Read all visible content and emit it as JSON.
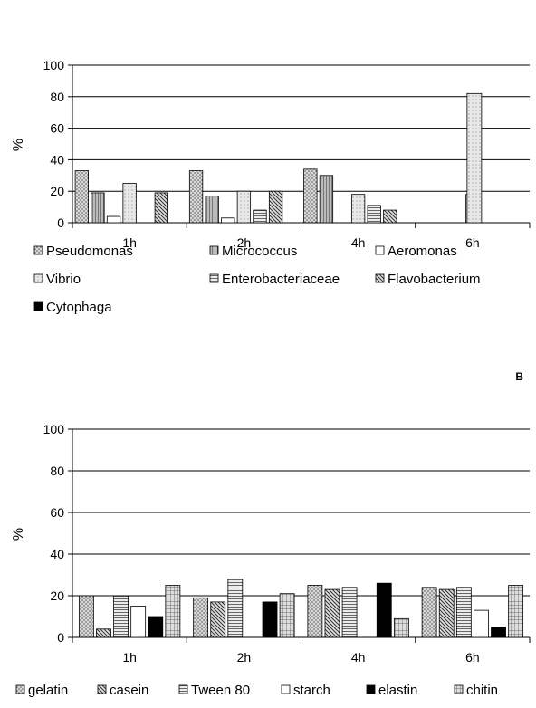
{
  "chart_data": [
    {
      "type": "bar",
      "panel_label": "",
      "ylabel": "%",
      "ylim": [
        0,
        100
      ],
      "yticks": [
        "0",
        "20",
        "40",
        "60",
        "80",
        "100"
      ],
      "grid": true,
      "legend_position": "bottom",
      "categories": [
        "1h",
        "2h",
        "4h",
        "6h"
      ],
      "series": [
        {
          "name": "Pseudomonas",
          "pattern": "dots",
          "values": [
            33,
            33,
            34,
            0
          ]
        },
        {
          "name": "Micrococcus",
          "pattern": "hatch-dense",
          "values": [
            19,
            17,
            30,
            0
          ]
        },
        {
          "name": "Aeromonas",
          "pattern": "white",
          "values": [
            4,
            3,
            0,
            0
          ]
        },
        {
          "name": "Vibrio",
          "pattern": "dots-light",
          "values": [
            25,
            20,
            18,
            18
          ]
        },
        {
          "name": "Enterobacteriaceae",
          "pattern": "horizontal",
          "values": [
            0,
            8,
            11,
            0
          ]
        },
        {
          "name": "Flavobacterium",
          "pattern": "diagonal",
          "values": [
            19,
            20,
            8,
            0
          ]
        },
        {
          "name": "Cytophaga",
          "pattern": "black",
          "values": [
            0,
            0,
            0,
            0
          ]
        }
      ],
      "extra_bars": [
        {
          "category": "6h",
          "series_label": "Vibrio",
          "value": 82
        }
      ]
    },
    {
      "type": "bar",
      "panel_label": "B",
      "ylabel": "%",
      "ylim": [
        0,
        100
      ],
      "yticks": [
        "0",
        "20",
        "40",
        "60",
        "80",
        "100"
      ],
      "grid": true,
      "legend_position": "bottom",
      "categories": [
        "1h",
        "2h",
        "4h",
        "6h"
      ],
      "series": [
        {
          "name": "gelatin",
          "pattern": "dots",
          "values": [
            20,
            19,
            25,
            24
          ]
        },
        {
          "name": "casein",
          "pattern": "diagonal",
          "values": [
            4,
            17,
            23,
            23
          ]
        },
        {
          "name": "Tween 80",
          "pattern": "horizontal",
          "values": [
            20,
            28,
            24,
            24
          ]
        },
        {
          "name": "starch",
          "pattern": "white",
          "values": [
            15,
            0,
            0,
            13
          ]
        },
        {
          "name": "elastin",
          "pattern": "black",
          "values": [
            10,
            17,
            26,
            5
          ]
        },
        {
          "name": "chitin",
          "pattern": "grid",
          "values": [
            25,
            21,
            9,
            25
          ]
        }
      ]
    }
  ]
}
